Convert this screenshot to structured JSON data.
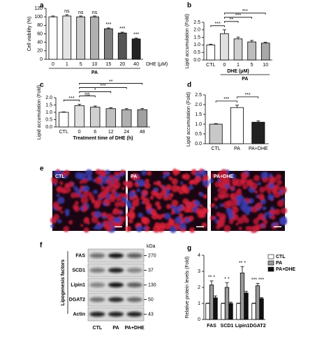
{
  "chart_data": [
    {
      "type": "bar",
      "panel": "a",
      "ylabel": "Cell viability (%)",
      "xlabel": "DHE (μM)",
      "group_label": "PA",
      "group_from": 0,
      "categories": [
        "0",
        "1",
        "5",
        "10",
        "15",
        "20",
        "40"
      ],
      "values": [
        100,
        102,
        100,
        100,
        72,
        62,
        48
      ],
      "errors": [
        2,
        3,
        2,
        2,
        2,
        2,
        2
      ],
      "colors": [
        "#ffffff",
        "#e4e4e4",
        "#cccccc",
        "#b0b0b0",
        "#808080",
        "#555555",
        "#222222"
      ],
      "ylim": [
        0,
        120
      ],
      "yticks": [
        0,
        20,
        40,
        60,
        80,
        100,
        120
      ],
      "annotations": [
        null,
        "ns",
        "ns",
        "ns",
        "***",
        "***",
        "***"
      ]
    },
    {
      "type": "bar",
      "panel": "b",
      "ylabel": "Lipid accumulation (Fold)",
      "xlabel": "DHE (μM)",
      "group_label": "PA",
      "group_from": 1,
      "categories": [
        "CTL",
        "0",
        "1",
        "5",
        "10"
      ],
      "values": [
        1.0,
        1.75,
        1.4,
        1.2,
        1.12
      ],
      "errors": [
        0.05,
        0.25,
        0.12,
        0.1,
        0.06
      ],
      "colors": [
        "#ffffff",
        "#e0e0e0",
        "#cfcfcf",
        "#bdbdbd",
        "#a8a8a8"
      ],
      "ylim": [
        0,
        2.5
      ],
      "yticks": [
        {
          "value": 0,
          "label": "0.0"
        },
        0.5,
        {
          "value": 1,
          "label": "1.0"
        },
        1.5,
        {
          "value": 2,
          "label": "2.0"
        },
        2.5
      ],
      "brackets": [
        {
          "from": 0,
          "to": 1,
          "text": "***"
        },
        {
          "from": 1,
          "to": 2,
          "text": "**"
        },
        {
          "from": 1,
          "to": 3,
          "text": "***"
        },
        {
          "from": 1,
          "to": 4,
          "text": "***"
        }
      ]
    },
    {
      "type": "bar",
      "panel": "c",
      "ylabel": "Lipid accumulation (Fold)",
      "xlabel": "Treatment time of DHE (h)",
      "categories": [
        "CTL",
        "0",
        "6",
        "12",
        "24",
        "48"
      ],
      "values": [
        1.0,
        1.45,
        1.35,
        1.25,
        1.18,
        1.18
      ],
      "errors": [
        0.03,
        0.1,
        0.08,
        0.07,
        0.07,
        0.08
      ],
      "colors": [
        "#ffffff",
        "#e0e0e0",
        "#d0d0d0",
        "#c0c0c0",
        "#b0b0b0",
        "#a0a0a0"
      ],
      "ylim": [
        0,
        2.0
      ],
      "yticks": [
        {
          "value": 0,
          "label": "0.0"
        },
        0.5,
        {
          "value": 1,
          "label": "1.0"
        },
        1.5,
        {
          "value": 2,
          "label": "2.0"
        }
      ],
      "brackets": [
        {
          "from": 0,
          "to": 1,
          "text": "***"
        },
        {
          "from": 1,
          "to": 2,
          "text": "ns"
        },
        {
          "from": 1,
          "to": 3,
          "text": "*"
        },
        {
          "from": 1,
          "to": 4,
          "text": "***"
        },
        {
          "from": 1,
          "to": 5,
          "text": "**"
        }
      ]
    },
    {
      "type": "bar",
      "panel": "d",
      "ylabel": "Lipid accumulation (Fold)",
      "categories": [
        "CTL",
        "PA",
        "PA+DHE"
      ],
      "values": [
        1.0,
        1.85,
        1.1
      ],
      "errors": [
        0.03,
        0.12,
        0.07
      ],
      "colors": [
        "#c8c8c8",
        "#ffffff",
        "#222222"
      ],
      "ylim": [
        0,
        2.5
      ],
      "yticks": [
        {
          "value": 0,
          "label": "0.0"
        },
        0.5,
        {
          "value": 1,
          "label": "1.0"
        },
        1.5,
        {
          "value": 2,
          "label": "2.0"
        },
        2.5
      ],
      "brackets": [
        {
          "from": 0,
          "to": 1,
          "text": "***"
        },
        {
          "from": 1,
          "to": 2,
          "text": "***"
        }
      ]
    },
    {
      "type": "grouped_bar",
      "panel": "g",
      "ylabel": "Relative protein levels (Fold)",
      "categories": [
        "FAS",
        "SCD1",
        "Lipin1",
        "DGAT2"
      ],
      "series": [
        {
          "name": "CTL",
          "color": "#ffffff",
          "values": [
            1,
            1,
            1,
            1
          ],
          "errors": [
            0.02,
            0.02,
            0.02,
            0.02
          ]
        },
        {
          "name": "PA",
          "color": "#9a9a9a",
          "values": [
            2.15,
            2.0,
            2.9,
            2.1
          ],
          "errors": [
            0.25,
            0.3,
            0.4,
            0.15
          ]
        },
        {
          "name": "PA+DHE",
          "color": "#111111",
          "values": [
            1.35,
            1.0,
            1.65,
            1.3
          ],
          "errors": [
            0.12,
            0.08,
            0.1,
            0.06
          ]
        }
      ],
      "ylim": [
        0,
        4
      ],
      "yticks": [
        0,
        1,
        2,
        3,
        4
      ],
      "annotations": [
        "** *",
        "* *",
        "** *",
        "*** ***"
      ]
    }
  ],
  "panel_e": {
    "panel": "e",
    "labels": [
      "CTL",
      "PA",
      "PA+DHE"
    ]
  },
  "panel_f": {
    "panel": "f",
    "side_label": "Lipogenesis factors",
    "unit": "kDa",
    "rows": [
      {
        "name": "FAS",
        "kda": 270
      },
      {
        "name": "SCD1",
        "kda": 37
      },
      {
        "name": "Lipin1",
        "kda": 130
      },
      {
        "name": "DGAT2",
        "kda": 50
      },
      {
        "name": "Actin",
        "kda": 43
      }
    ],
    "columns": [
      "CTL",
      "PA",
      "PA+DHE"
    ]
  }
}
